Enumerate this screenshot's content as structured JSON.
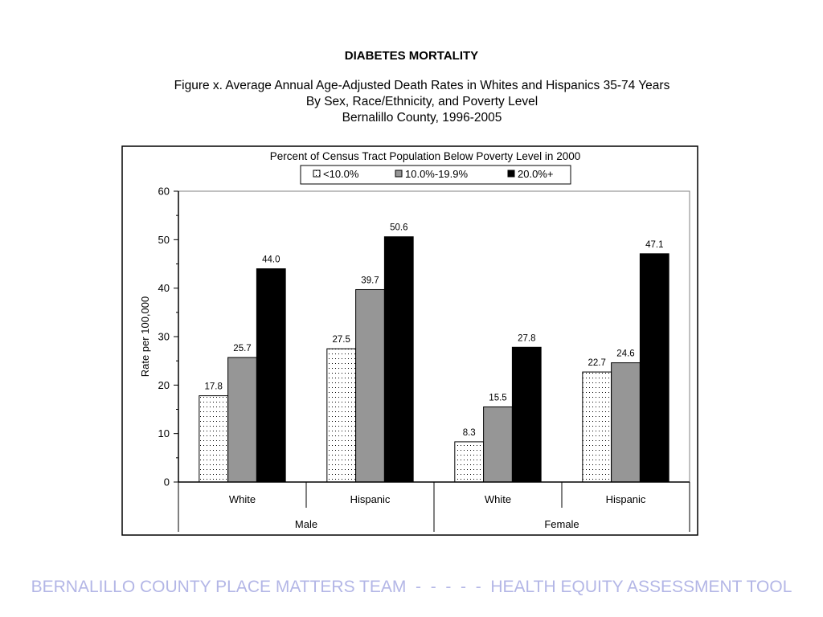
{
  "title": "DIABETES MORTALITY",
  "subtitle": {
    "line1": "Figure x. Average Annual Age-Adjusted Death Rates in Whites and Hispanics 35-74 Years",
    "line2": "By Sex, Race/Ethnicity, and Poverty Level",
    "line3": "Bernalillo County, 1996-2005"
  },
  "footer": "BERNALILLO COUNTY PLACE MATTERS TEAM  -  -  -  -  -  HEALTH EQUITY ASSESSMENT TOOL",
  "colors": {
    "series_low": "#ffffff",
    "series_mid": "#969696",
    "series_high": "#000000",
    "footer": "#b3b6e6"
  },
  "chart_data": {
    "type": "bar",
    "title": "Percent of Census Tract Population Below Poverty Level in 2000",
    "ylabel": "Rate per 100,000",
    "xlabel": "",
    "ylim": [
      0,
      60
    ],
    "yticks": [
      "0",
      "10",
      "20",
      "30",
      "40",
      "50",
      "60"
    ],
    "grid": false,
    "legend_position": "top",
    "groups": [
      "Male",
      "Female"
    ],
    "categories": [
      "White",
      "Hispanic",
      "White",
      "Hispanic"
    ],
    "series": [
      {
        "name": "<10.0%",
        "values": [
          17.8,
          27.5,
          8.3,
          22.7
        ],
        "labels": [
          "17.8",
          "27.5",
          "8.3",
          "22.7"
        ],
        "fill": "dotted"
      },
      {
        "name": "10.0%-19.9%",
        "values": [
          25.7,
          39.7,
          15.5,
          24.6
        ],
        "labels": [
          "25.7",
          "39.7",
          "15.5",
          "24.6"
        ],
        "fill": "gray"
      },
      {
        "name": "20.0%+",
        "values": [
          44.0,
          50.6,
          27.8,
          47.1
        ],
        "labels": [
          "44.0",
          "50.6",
          "27.8",
          "47.1"
        ],
        "fill": "black"
      }
    ]
  }
}
